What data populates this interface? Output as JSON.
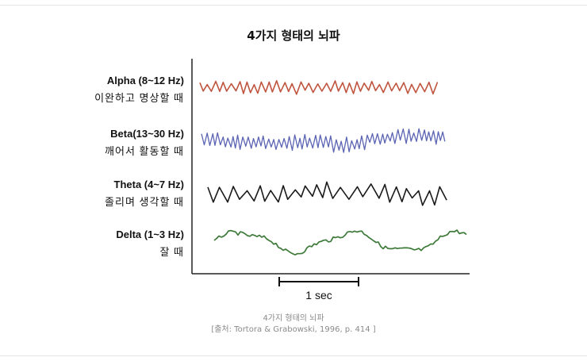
{
  "title": "4가지 형태의 뇌파",
  "bands": [
    {
      "name": "Alpha (8~12 Hz)",
      "desc": "이완하고 명상할 때",
      "color": "#c0553f"
    },
    {
      "name": "Beta(13~30 Hz)",
      "desc": "깨어서 활동할 때",
      "color": "#5b63b3"
    },
    {
      "name": "Theta (4~7 Hz)",
      "desc": "졸리며 생각할 때",
      "color": "#1a1a1a"
    },
    {
      "name": "Delta (1~3 Hz)",
      "desc": "잘 때",
      "color": "#3e7a3a"
    }
  ],
  "scale_bar": {
    "label": "1 sec"
  },
  "caption": {
    "line1": "4가지 형태의 뇌파",
    "line2": "[출처: Tortora & Grabowski, 1996, p. 414 ]"
  }
}
